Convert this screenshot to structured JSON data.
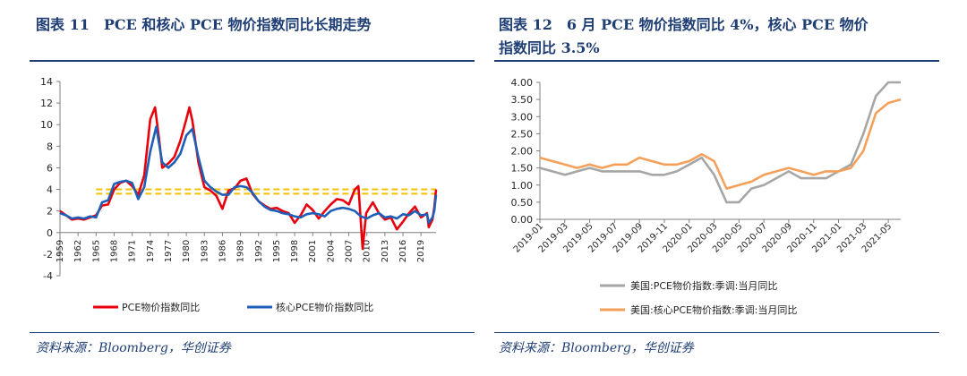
{
  "left": {
    "title": "图表 11　PCE 和核心 PCE 物价指数同比长期走势",
    "source": "资料来源：Bloomberg，华创证券"
  },
  "right": {
    "title_line1": "图表 12　6 月 PCE 物价指数同比 4%，核心 PCE 物价",
    "title_line2": "指数同比 3.5%",
    "source": "资料来源：Bloomberg，华创证券"
  },
  "colors": {
    "navy": "#1f3e74",
    "pce_red": "#e8000c",
    "core_blue": "#1f5fb8",
    "ref_yellow": "#f6c000",
    "gray": "#a6a6a6",
    "orange": "#f4a05a"
  },
  "chart_data": [
    {
      "type": "line",
      "x_ticks": [
        "1959",
        "1962",
        "1965",
        "1968",
        "1971",
        "1974",
        "1977",
        "1980",
        "1983",
        "1986",
        "1989",
        "1992",
        "1995",
        "1998",
        "2001",
        "2004",
        "2007",
        "2010",
        "2013",
        "2016",
        "2019"
      ],
      "y_ticks": [
        "-4",
        "-2",
        "0",
        "2",
        "4",
        "6",
        "8",
        "10",
        "12",
        "14"
      ],
      "ylim": [
        -4,
        14
      ],
      "xlim": [
        1959,
        2021.5
      ],
      "reference_lines": [
        3.6,
        4.0
      ],
      "series": [
        {
          "name": "PCE物价指数同比",
          "color": "#e8000c",
          "points": [
            [
              1959,
              2.0
            ],
            [
              1960,
              1.6
            ],
            [
              1961,
              1.2
            ],
            [
              1962,
              1.3
            ],
            [
              1963,
              1.2
            ],
            [
              1964,
              1.4
            ],
            [
              1965,
              1.6
            ],
            [
              1966,
              2.5
            ],
            [
              1967,
              2.6
            ],
            [
              1968,
              4.0
            ],
            [
              1969,
              4.6
            ],
            [
              1970,
              4.8
            ],
            [
              1971,
              4.3
            ],
            [
              1972,
              3.5
            ],
            [
              1973,
              5.3
            ],
            [
              1974,
              10.5
            ],
            [
              1974.8,
              11.6
            ],
            [
              1975.5,
              8.5
            ],
            [
              1976,
              6.0
            ],
            [
              1977,
              6.4
            ],
            [
              1978,
              7.0
            ],
            [
              1979,
              8.5
            ],
            [
              1980,
              10.5
            ],
            [
              1980.5,
              11.6
            ],
            [
              1981,
              10.4
            ],
            [
              1982,
              6.5
            ],
            [
              1983,
              4.2
            ],
            [
              1984,
              3.9
            ],
            [
              1985,
              3.4
            ],
            [
              1986,
              2.2
            ],
            [
              1987,
              3.9
            ],
            [
              1988,
              4.1
            ],
            [
              1989,
              4.8
            ],
            [
              1990,
              5.0
            ],
            [
              1991,
              3.6
            ],
            [
              1992,
              2.9
            ],
            [
              1993,
              2.5
            ],
            [
              1994,
              2.2
            ],
            [
              1995,
              2.3
            ],
            [
              1996,
              2.0
            ],
            [
              1997,
              1.8
            ],
            [
              1998,
              0.9
            ],
            [
              1999,
              1.6
            ],
            [
              2000,
              2.6
            ],
            [
              2001,
              2.1
            ],
            [
              2002,
              1.3
            ],
            [
              2003,
              2.0
            ],
            [
              2004,
              2.6
            ],
            [
              2005,
              3.1
            ],
            [
              2006,
              3.0
            ],
            [
              2007,
              2.6
            ],
            [
              2008,
              4.0
            ],
            [
              2008.6,
              4.3
            ],
            [
              2009.3,
              -1.5
            ],
            [
              2009.9,
              1.8
            ],
            [
              2010,
              1.9
            ],
            [
              2011,
              2.8
            ],
            [
              2012,
              1.8
            ],
            [
              2013,
              1.2
            ],
            [
              2014,
              1.4
            ],
            [
              2015,
              0.3
            ],
            [
              2016,
              1.0
            ],
            [
              2017,
              1.8
            ],
            [
              2018,
              2.4
            ],
            [
              2019,
              1.4
            ],
            [
              2020,
              1.8
            ],
            [
              2020.3,
              0.5
            ],
            [
              2020.9,
              1.2
            ],
            [
              2021.2,
              2.3
            ],
            [
              2021.5,
              4.0
            ]
          ]
        },
        {
          "name": "核心PCE物价指数同比",
          "color": "#1f5fb8",
          "points": [
            [
              1959,
              1.8
            ],
            [
              1960,
              1.6
            ],
            [
              1961,
              1.3
            ],
            [
              1962,
              1.4
            ],
            [
              1963,
              1.3
            ],
            [
              1964,
              1.5
            ],
            [
              1965,
              1.4
            ],
            [
              1966,
              2.8
            ],
            [
              1967,
              3.0
            ],
            [
              1968,
              4.5
            ],
            [
              1969,
              4.7
            ],
            [
              1970,
              4.8
            ],
            [
              1971,
              4.6
            ],
            [
              1972,
              3.1
            ],
            [
              1973,
              4.2
            ],
            [
              1974,
              7.5
            ],
            [
              1975,
              9.8
            ],
            [
              1976,
              6.5
            ],
            [
              1977,
              6.0
            ],
            [
              1978,
              6.5
            ],
            [
              1979,
              7.3
            ],
            [
              1980,
              9.0
            ],
            [
              1981,
              9.6
            ],
            [
              1982,
              7.0
            ],
            [
              1983,
              4.8
            ],
            [
              1984,
              4.2
            ],
            [
              1985,
              3.8
            ],
            [
              1986,
              3.5
            ],
            [
              1987,
              3.5
            ],
            [
              1988,
              4.2
            ],
            [
              1989,
              4.3
            ],
            [
              1990,
              4.2
            ],
            [
              1991,
              3.7
            ],
            [
              1992,
              2.9
            ],
            [
              1993,
              2.4
            ],
            [
              1994,
              2.1
            ],
            [
              1995,
              2.0
            ],
            [
              1996,
              1.8
            ],
            [
              1997,
              1.7
            ],
            [
              1998,
              1.5
            ],
            [
              1999,
              1.4
            ],
            [
              2000,
              1.7
            ],
            [
              2001,
              1.8
            ],
            [
              2002,
              1.7
            ],
            [
              2003,
              1.5
            ],
            [
              2004,
              2.0
            ],
            [
              2005,
              2.2
            ],
            [
              2006,
              2.3
            ],
            [
              2007,
              2.2
            ],
            [
              2008,
              2.0
            ],
            [
              2009,
              1.5
            ],
            [
              2010,
              1.3
            ],
            [
              2011,
              1.6
            ],
            [
              2012,
              1.8
            ],
            [
              2013,
              1.4
            ],
            [
              2014,
              1.5
            ],
            [
              2015,
              1.3
            ],
            [
              2016,
              1.7
            ],
            [
              2017,
              1.6
            ],
            [
              2018,
              2.0
            ],
            [
              2019,
              1.6
            ],
            [
              2020,
              1.7
            ],
            [
              2020.3,
              0.9
            ],
            [
              2020.9,
              1.4
            ],
            [
              2021.2,
              2.0
            ],
            [
              2021.5,
              3.5
            ]
          ]
        }
      ]
    },
    {
      "type": "line",
      "categories": [
        "2019-01",
        "2019-02",
        "2019-03",
        "2019-04",
        "2019-05",
        "2019-06",
        "2019-07",
        "2019-08",
        "2019-09",
        "2019-10",
        "2019-11",
        "2019-12",
        "2020-01",
        "2020-02",
        "2020-03",
        "2020-04",
        "2020-05",
        "2020-06",
        "2020-07",
        "2020-08",
        "2020-09",
        "2020-10",
        "2020-11",
        "2020-12",
        "2021-01",
        "2021-02",
        "2021-03",
        "2021-04",
        "2021-05",
        "2021-06"
      ],
      "x_tick_labels": [
        "2019-01",
        "2019-03",
        "2019-05",
        "2019-07",
        "2019-09",
        "2019-11",
        "2020-01",
        "2020-03",
        "2020-05",
        "2020-07",
        "2020-09",
        "2020-11",
        "2021-01",
        "2021-03",
        "2021-05"
      ],
      "y_ticks": [
        "0.00",
        "0.50",
        "1.00",
        "1.50",
        "2.00",
        "2.50",
        "3.00",
        "3.50",
        "4.00"
      ],
      "ylim": [
        0,
        4
      ],
      "series": [
        {
          "name": "美国:PCE物价指数:季调:当月同比",
          "color": "#a6a6a6",
          "values": [
            1.5,
            1.4,
            1.3,
            1.4,
            1.5,
            1.4,
            1.4,
            1.4,
            1.4,
            1.3,
            1.3,
            1.4,
            1.6,
            1.8,
            1.3,
            0.5,
            0.5,
            0.9,
            1.0,
            1.2,
            1.4,
            1.2,
            1.2,
            1.2,
            1.4,
            1.6,
            2.5,
            3.6,
            4.0,
            4.0
          ]
        },
        {
          "name": "美国:核心PCE物价指数:季调:当月同比",
          "color": "#f4a05a",
          "values": [
            1.8,
            1.7,
            1.6,
            1.5,
            1.6,
            1.5,
            1.6,
            1.6,
            1.8,
            1.7,
            1.6,
            1.6,
            1.7,
            1.9,
            1.7,
            0.9,
            1.0,
            1.1,
            1.3,
            1.4,
            1.5,
            1.4,
            1.3,
            1.4,
            1.4,
            1.5,
            2.0,
            3.1,
            3.4,
            3.5
          ]
        }
      ]
    }
  ]
}
